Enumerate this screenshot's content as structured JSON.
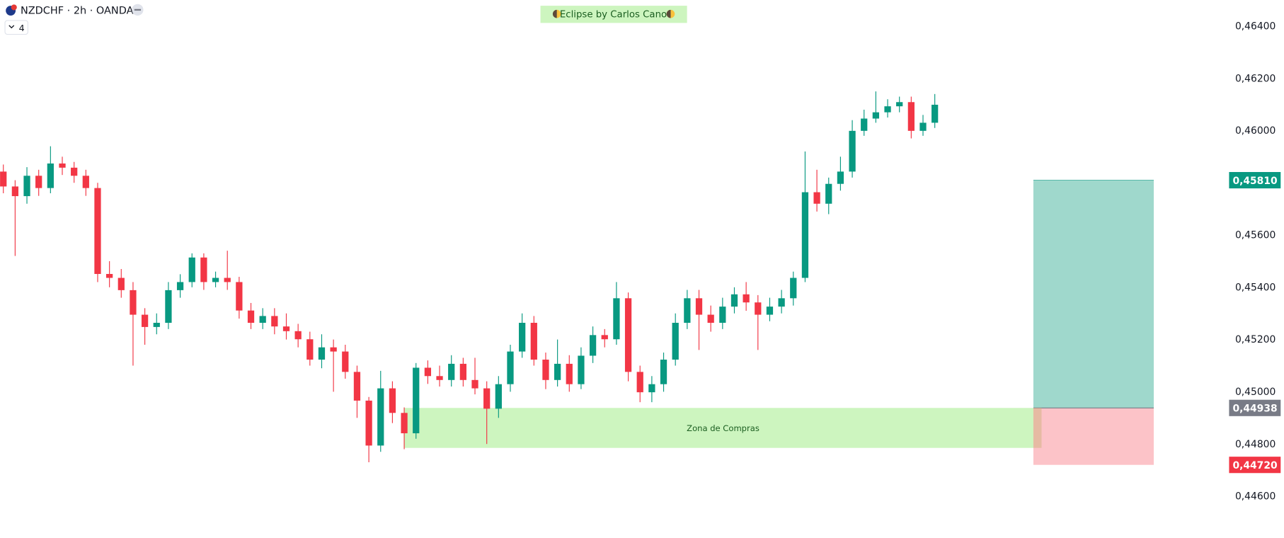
{
  "header": {
    "symbol": "NZDCHF · 2h · OANDA",
    "indicators": "4"
  },
  "banner": "Eclipse by Carlos Cano",
  "chart_data": {
    "type": "candlestick",
    "open": [
      0.45843,
      0.45786,
      0.45749,
      0.45827,
      0.4578,
      0.45874,
      0.45858,
      0.45827,
      0.4578,
      0.45451,
      0.45436,
      0.45389,
      0.45295,
      0.45248,
      0.45264,
      0.45389,
      0.4542,
      0.45514,
      0.4542,
      0.45436,
      0.4542,
      0.45311,
      0.45264,
      0.4529,
      0.4525,
      0.45232,
      0.45201,
      0.45123,
      0.4517,
      0.45154,
      0.45076,
      0.44966,
      0.44794,
      0.45013,
      0.44919,
      0.44841,
      0.45092,
      0.4506,
      0.45045,
      0.45107,
      0.45045,
      0.45013,
      0.44935,
      0.45029,
      0.45154,
      0.45264,
      0.45123,
      0.45045,
      0.45107,
      0.45029,
      0.45138,
      0.45217,
      0.45201,
      0.45358,
      0.45076,
      0.44998,
      0.45029,
      0.45123,
      0.45264,
      0.45358,
      0.45295,
      0.45264,
      0.45326,
      0.45373,
      0.45342,
      0.45295,
      0.45326,
      0.45358,
      0.45436,
      0.45764,
      0.4572,
      0.45796,
      0.45843,
      0.45999,
      0.46046,
      0.4607,
      0.46093,
      0.46109,
      0.45999,
      0.4603
    ],
    "high": [
      0.4587,
      0.4581,
      0.4586,
      0.4585,
      0.4594,
      0.459,
      0.4588,
      0.4585,
      0.458,
      0.455,
      0.4547,
      0.4542,
      0.4532,
      0.453,
      0.4542,
      0.4545,
      0.4553,
      0.4553,
      0.4546,
      0.4554,
      0.4544,
      0.4534,
      0.4532,
      0.4532,
      0.453,
      0.4526,
      0.4523,
      0.4522,
      0.452,
      0.4518,
      0.451,
      0.4498,
      0.4508,
      0.4504,
      0.4494,
      0.4511,
      0.4512,
      0.451,
      0.4514,
      0.4513,
      0.4513,
      0.4504,
      0.4506,
      0.4518,
      0.453,
      0.4529,
      0.4515,
      0.452,
      0.4514,
      0.4517,
      0.4525,
      0.4524,
      0.4542,
      0.4538,
      0.451,
      0.4506,
      0.4515,
      0.453,
      0.4539,
      0.4539,
      0.4533,
      0.4536,
      0.454,
      0.4542,
      0.4537,
      0.4536,
      0.4539,
      0.4546,
      0.4592,
      0.4585,
      0.4582,
      0.459,
      0.4604,
      0.4608,
      0.4615,
      0.4612,
      0.4613,
      0.4613,
      0.4606,
      0.4614
    ],
    "low": [
      0.4576,
      0.4552,
      0.4572,
      0.4575,
      0.4576,
      0.4583,
      0.458,
      0.4575,
      0.4542,
      0.454,
      0.4536,
      0.451,
      0.4518,
      0.4522,
      0.4524,
      0.4536,
      0.454,
      0.4539,
      0.454,
      0.4539,
      0.4528,
      0.4524,
      0.4524,
      0.4522,
      0.452,
      0.4517,
      0.451,
      0.4509,
      0.45,
      0.4505,
      0.449,
      0.4473,
      0.4477,
      0.4488,
      0.4478,
      0.4482,
      0.4503,
      0.4502,
      0.4502,
      0.4502,
      0.4499,
      0.448,
      0.449,
      0.45,
      0.4513,
      0.451,
      0.4501,
      0.4502,
      0.45,
      0.4501,
      0.4511,
      0.4517,
      0.4518,
      0.4504,
      0.4496,
      0.4496,
      0.45,
      0.451,
      0.4524,
      0.4516,
      0.4523,
      0.4524,
      0.453,
      0.4531,
      0.4516,
      0.4527,
      0.453,
      0.4533,
      0.4542,
      0.4569,
      0.4568,
      0.4577,
      0.4582,
      0.4598,
      0.4603,
      0.4605,
      0.4607,
      0.4597,
      0.4598,
      0.4601
    ],
    "close": [
      0.45786,
      0.45749,
      0.45827,
      0.4578,
      0.45874,
      0.45858,
      0.45827,
      0.4578,
      0.45451,
      0.45436,
      0.45389,
      0.45295,
      0.45248,
      0.45264,
      0.45389,
      0.4542,
      0.45514,
      0.4542,
      0.45436,
      0.4542,
      0.45311,
      0.45264,
      0.4529,
      0.4525,
      0.45232,
      0.45201,
      0.45123,
      0.4517,
      0.45154,
      0.45076,
      0.44966,
      0.44794,
      0.45013,
      0.44919,
      0.44841,
      0.45092,
      0.4506,
      0.45045,
      0.45107,
      0.45045,
      0.45013,
      0.44935,
      0.45029,
      0.45154,
      0.45264,
      0.45123,
      0.45045,
      0.45107,
      0.45029,
      0.45138,
      0.45217,
      0.45201,
      0.45358,
      0.45076,
      0.44998,
      0.45029,
      0.45123,
      0.45264,
      0.45358,
      0.45295,
      0.45264,
      0.45326,
      0.45373,
      0.45342,
      0.45295,
      0.45326,
      0.45358,
      0.45436,
      0.45764,
      0.4572,
      0.45796,
      0.45843,
      0.45999,
      0.46046,
      0.4607,
      0.46093,
      0.46109,
      0.45999,
      0.4603,
      0.46099
    ],
    "up_color": "#089981",
    "down_color": "#f23645",
    "ylim": [
      0.4444,
      0.465
    ],
    "yticks": [
      {
        "value": 0.464,
        "label": "0,46400"
      },
      {
        "value": 0.462,
        "label": "0,46200"
      },
      {
        "value": 0.46,
        "label": "0,46000"
      },
      {
        "value": 0.456,
        "label": "0,45600"
      },
      {
        "value": 0.454,
        "label": "0,45400"
      },
      {
        "value": 0.452,
        "label": "0,45200"
      },
      {
        "value": 0.45,
        "label": "0,45000"
      },
      {
        "value": 0.448,
        "label": "0,44800"
      },
      {
        "value": 0.446,
        "label": "0,44600"
      }
    ],
    "zone": {
      "label": "Zona de Compras",
      "top": 0.44938,
      "bottom": 0.44785,
      "color": "#cdf5bf"
    },
    "position": {
      "target": {
        "value": 0.4581,
        "label": "0,45810"
      },
      "entry": {
        "value": 0.44938,
        "label": "0,44938"
      },
      "stop": {
        "value": 0.4472,
        "label": "0,44720"
      },
      "target_color": "#9fd8cc",
      "stop_color": "#fcc3c8",
      "entry_color": "#787b86"
    }
  }
}
